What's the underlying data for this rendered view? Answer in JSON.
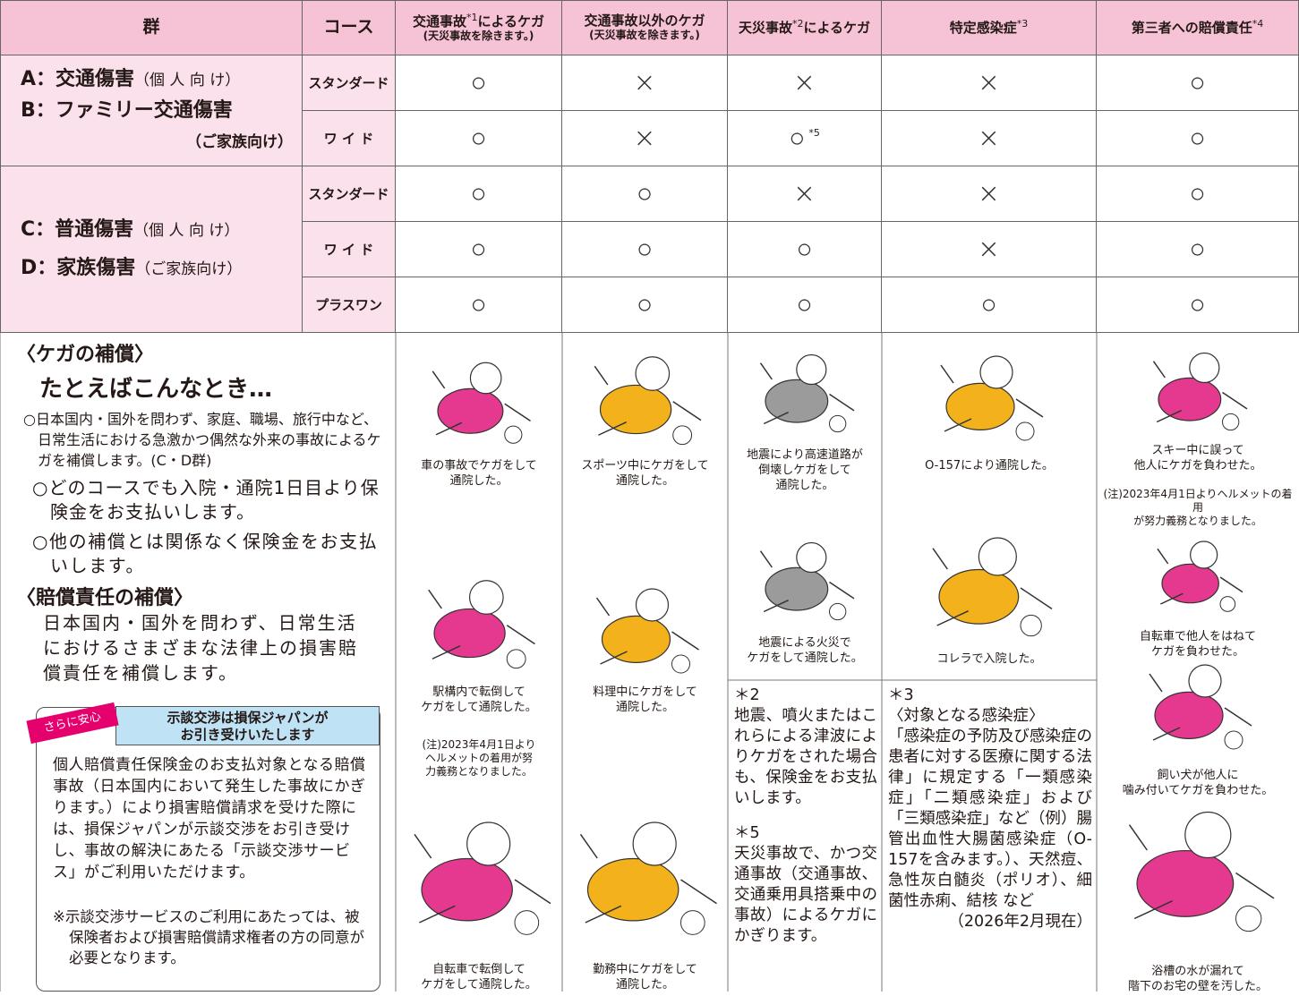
{
  "table": {
    "headers": [
      {
        "text": "群"
      },
      {
        "text": "コース"
      },
      {
        "text": "交通事故",
        "sup": "*1",
        "after": "によるケガ",
        "sub": "(天災事故を除きます。)"
      },
      {
        "text": "交通事故以外のケガ",
        "sub": "(天災事故を除きます。)"
      },
      {
        "text": "天災事故",
        "sup": "*2",
        "after": "によるケガ"
      },
      {
        "text": "特定感染症",
        "sup": "*3"
      },
      {
        "text": "第三者への賠償責任",
        "sup": "*4"
      }
    ],
    "groups": [
      {
        "labels": [
          {
            "main": "A：交通傷害",
            "paren": "（個 人 向 け）"
          },
          {
            "main": "B：ファミリー交通傷害"
          },
          {
            "paren": "（ご家族向け）"
          }
        ],
        "courses": [
          {
            "name": "スタンダード",
            "cells": [
              "○",
              "×",
              "×",
              "×",
              "○"
            ]
          },
          {
            "name": "ワ イ ド",
            "cells": [
              "○",
              "×",
              {
                "mark": "○",
                "note": "*5"
              },
              "×",
              "○"
            ]
          }
        ]
      },
      {
        "labels": [
          {
            "main": "C：普通傷害",
            "paren": "（個 人 向 け）"
          },
          {
            "main": "D：家族傷害",
            "paren": "（ご家族向け）"
          }
        ],
        "courses": [
          {
            "name": "スタンダード",
            "cells": [
              "○",
              "○",
              "×",
              "×",
              "○"
            ]
          },
          {
            "name": "ワ イ ド",
            "cells": [
              "○",
              "○",
              "○",
              "×",
              "○"
            ]
          },
          {
            "name": "プラスワン",
            "cells": [
              "○",
              "○",
              "○",
              "○",
              "○"
            ]
          }
        ]
      }
    ]
  },
  "left": {
    "heading1": "〈ケガの補償〉",
    "subheading": "たとえばこんなとき…",
    "bullets": [
      "○日本国内・国外を問わず、家庭、職場、旅行中など、日常生活における急激かつ偶然な外来の事故によるケガを補償します。(C・D群)",
      "○どのコースでも入院・通院1日目より保険金をお支払いします。",
      "○他の補償とは関係なく保険金をお支払いします。"
    ],
    "heading2": "〈賠償責任の補償〉",
    "paragraph": "日本国内・国外を問わず、日常生活におけるさまざまな法律上の損害賠償責任を補償します。",
    "box": {
      "badge": "さらに安心",
      "title": [
        "示談交渉は損保ジャパンが",
        "お引き受けいたします"
      ],
      "body": "個人賠償責任保険金のお支払対象となる賠償事故（日本国内において発生した事故にかぎります。）により損害賠償請求を受けた際には、損保ジャパンが示談交渉をお引き受けし、事故の解決にあたる「示談交渉サービス」がご利用いただけます。",
      "note": "※示談交渉サービスのご利用にあたっては、被保険者および損害賠償請求権者の方の同意が必要となります。"
    }
  },
  "examples": [
    [
      {
        "caption": [
          "車の事故でケガをして",
          "通院した。"
        ]
      },
      {
        "caption": [
          "駅構内で転倒して",
          "ケガをして通院した。"
        ]
      },
      {
        "note": [
          "(注)2023年4月1日より",
          "ヘルメットの着用が努",
          "力義務となりました。"
        ]
      },
      {
        "caption": [
          "自転車で転倒して",
          "ケガをして通院した。"
        ]
      }
    ],
    [
      {
        "caption": [
          "スポーツ中にケガをして",
          "通院した。"
        ]
      },
      {
        "caption": [
          "料理中にケガをして",
          "通院した。"
        ]
      },
      {
        "caption": [
          "勤務中にケガをして",
          "通院した。"
        ]
      }
    ],
    [
      {
        "caption": [
          "地震により高速道路が",
          "倒壊しケガをして",
          "通院した。"
        ]
      },
      {
        "caption": [
          "地震による火災で",
          "ケガをして通院した。"
        ]
      }
    ],
    [
      {
        "caption": [
          "O-157により通院した。"
        ]
      },
      {
        "caption": [
          "コレラで入院した。"
        ]
      }
    ],
    [
      {
        "caption": [
          "スキー中に誤って",
          "他人にケガを負わせた。"
        ]
      },
      {
        "note": [
          "(注)2023年4月1日よりヘルメットの着用",
          "が努力義務となりました。"
        ]
      },
      {
        "caption": [
          "自転車で他人をはねて",
          "ケガを負わせた。"
        ]
      },
      {
        "caption": [
          "飼い犬が他人に",
          "噛み付いてケガを負わせた。"
        ]
      },
      {
        "caption": [
          "浴槽の水が漏れて",
          "階下のお宅の壁を汚した。"
        ]
      }
    ]
  ],
  "footnotes": {
    "n2": {
      "label": "＊2",
      "text": "地震、噴火またはこれらによる津波によりケガをされた場合も、保険金をお支払いします。"
    },
    "n5": {
      "label": "＊5",
      "text": "天災事故で、かつ交通事故（交通事故、交通乗用具搭乗中の事故）によるケガにかぎります。"
    },
    "n3": {
      "label": "＊3",
      "heading": "〈対象となる感染症〉",
      "text": "「感染症の予防及び感染症の患者に対する医療に関する法律」に規定する「一類感染症」「二類感染症」および「三類感染症」など（例）腸管出血性大腸菌感染症（O-157を含みます。）、天然痘、急性灰白髄炎（ポリオ）、細菌性赤痢、結核 など",
      "date": "（2026年2月現在）"
    }
  }
}
